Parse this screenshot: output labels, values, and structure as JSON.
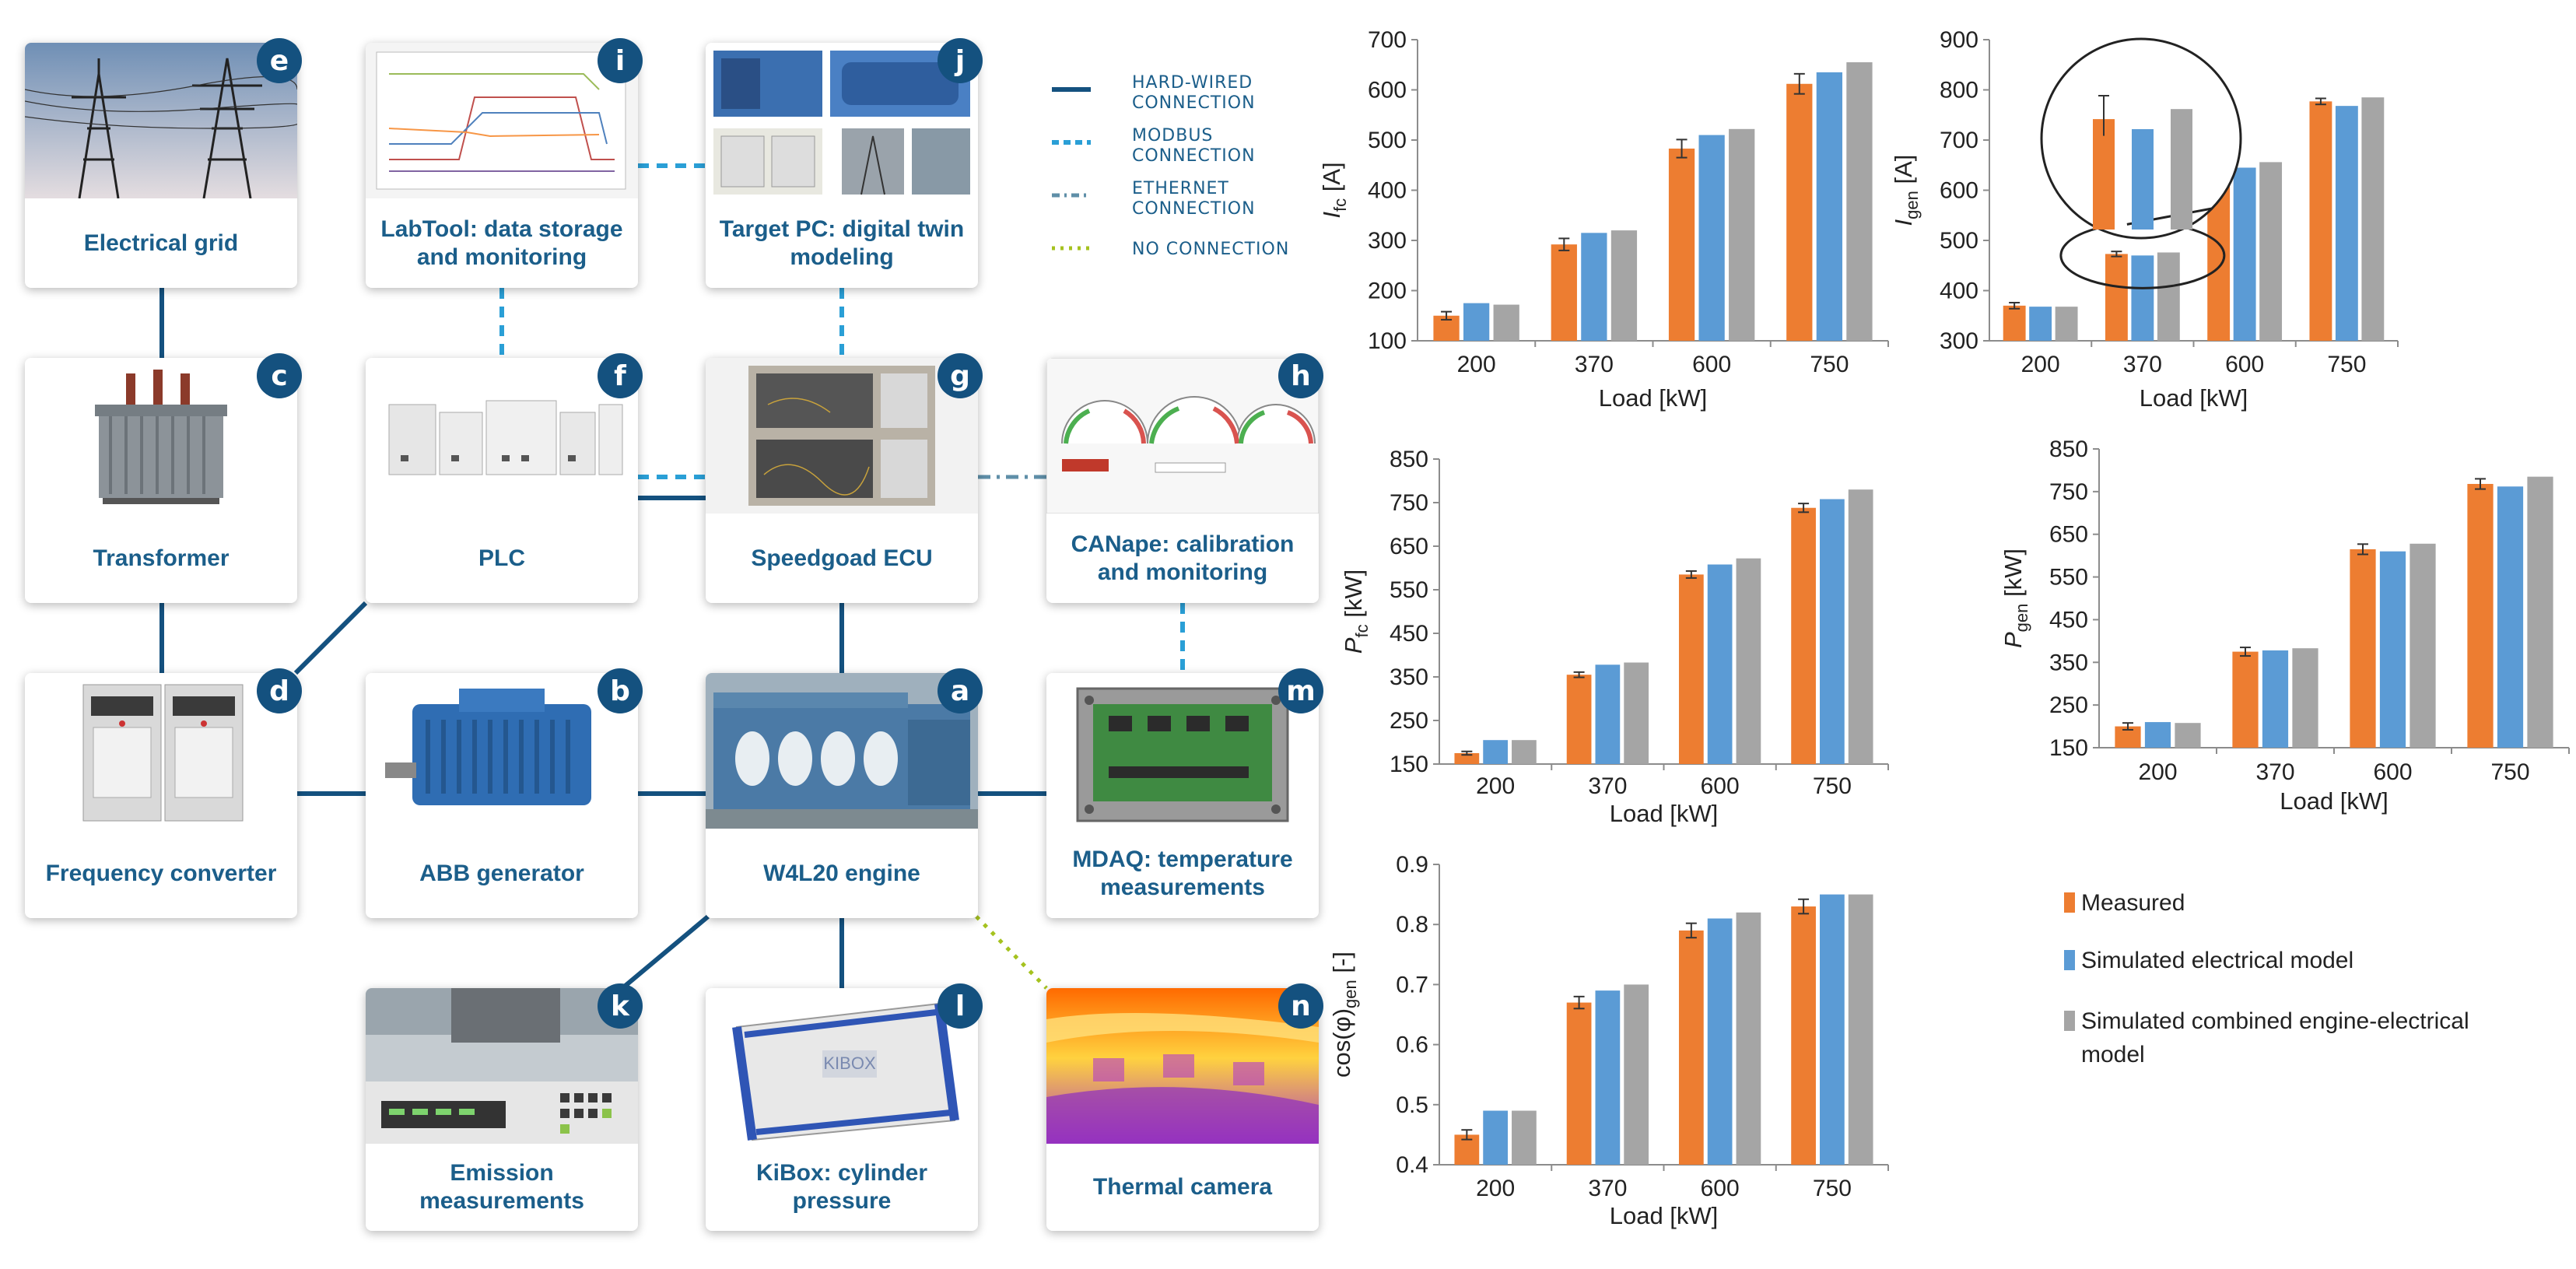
{
  "cards": [
    {
      "id": "e",
      "label": "Electrical grid",
      "photo": "power-lines"
    },
    {
      "id": "i",
      "label": "LabTool: data storage and monitoring",
      "photo": "monitor-plot"
    },
    {
      "id": "j",
      "label": "Target PC: digital twin modeling",
      "photo": "pc-montage"
    },
    {
      "id": "c",
      "label": "Transformer",
      "photo": "transformer"
    },
    {
      "id": "f",
      "label": "PLC",
      "photo": "plc"
    },
    {
      "id": "g",
      "label": "Speedgoad ECU",
      "photo": "ecu-rack"
    },
    {
      "id": "h",
      "label": "CANape: calibration and monitoring",
      "photo": "gauges"
    },
    {
      "id": "d",
      "label": "Frequency converter",
      "photo": "converter-cabinet"
    },
    {
      "id": "b",
      "label": "ABB generator",
      "photo": "generator"
    },
    {
      "id": "a",
      "label": "W4L20 engine",
      "photo": "engine"
    },
    {
      "id": "m",
      "label": "MDAQ: temperature measurements",
      "photo": "daq-box"
    },
    {
      "id": "k",
      "label": "Emission measurements",
      "photo": "analyzer"
    },
    {
      "id": "l",
      "label": "KiBox: cylinder pressure",
      "photo": "kibox"
    },
    {
      "id": "n",
      "label": "Thermal camera",
      "photo": "thermal"
    }
  ],
  "legend": [
    {
      "type": "hard",
      "line1": "HARD-WIRED",
      "line2": "CONNECTION"
    },
    {
      "type": "modbus",
      "line1": "MODBUS",
      "line2": "CONNECTION"
    },
    {
      "type": "ethernet",
      "line1": "ETHERNET",
      "line2": "CONNECTION"
    },
    {
      "type": "none",
      "line1": "NO CONNECTION",
      "line2": ""
    }
  ],
  "colors": {
    "hard": "#14517f",
    "modbus": "#2a9fd6",
    "ethernet": "#5f8fa8",
    "none": "#a5c21f",
    "measured": "#ed7d31",
    "sim_elec": "#5b9bd5",
    "sim_comb": "#a5a5a5"
  },
  "chart_legend": {
    "measured": "Measured",
    "sim_elec": "Simulated electrical model",
    "sim_comb_line1": "Simulated combined engine-electrical",
    "sim_comb_line2": "model"
  },
  "chart_data": [
    {
      "type": "bar",
      "ylabel_main": "I",
      "ylabel_sub": "fc",
      "ylabel_unit": " [A]",
      "xlabel": "Load [kW]",
      "categories": [
        "200",
        "370",
        "600",
        "750"
      ],
      "ylim": [
        100,
        700
      ],
      "yticks": [
        100,
        200,
        300,
        400,
        500,
        600,
        700
      ],
      "series": [
        {
          "name": "Measured",
          "values": [
            150,
            292,
            483,
            612
          ],
          "err": [
            8,
            12,
            18,
            20
          ]
        },
        {
          "name": "Simulated electrical model",
          "values": [
            175,
            315,
            510,
            635
          ]
        },
        {
          "name": "Simulated combined engine-electrical model",
          "values": [
            172,
            320,
            522,
            655
          ]
        }
      ]
    },
    {
      "type": "bar",
      "ylabel_main": "I",
      "ylabel_sub": "gen",
      "ylabel_unit": " [A]",
      "xlabel": "Load [kW]",
      "categories": [
        "200",
        "370",
        "600",
        "750"
      ],
      "ylim": [
        300,
        900
      ],
      "yticks": [
        300,
        400,
        500,
        600,
        700,
        800,
        900
      ],
      "series": [
        {
          "name": "Measured",
          "values": [
            370,
            473,
            652,
            777
          ],
          "err": [
            6,
            5,
            6,
            6
          ]
        },
        {
          "name": "Simulated electrical model",
          "values": [
            368,
            470,
            645,
            768
          ]
        },
        {
          "name": "Simulated combined engine-electrical model",
          "values": [
            368,
            476,
            656,
            785
          ]
        }
      ],
      "inset": {
        "values": [
          473,
          470,
          476
        ]
      }
    },
    {
      "type": "bar",
      "ylabel_main": "P",
      "ylabel_sub": "fc",
      "ylabel_unit": " [kW]",
      "xlabel": "Load [kW]",
      "categories": [
        "200",
        "370",
        "600",
        "750"
      ],
      "ylim": [
        150,
        850
      ],
      "yticks": [
        150,
        250,
        350,
        450,
        550,
        650,
        750,
        850
      ],
      "series": [
        {
          "name": "Measured",
          "values": [
            175,
            355,
            585,
            738
          ],
          "err": [
            4,
            6,
            8,
            10
          ]
        },
        {
          "name": "Simulated electrical model",
          "values": [
            205,
            378,
            608,
            758
          ]
        },
        {
          "name": "Simulated combined engine-electrical model",
          "values": [
            205,
            383,
            622,
            780
          ]
        }
      ]
    },
    {
      "type": "bar",
      "ylabel_main": "P",
      "ylabel_sub": "gen",
      "ylabel_unit": " [kW]",
      "xlabel": "Load [kW]",
      "categories": [
        "200",
        "370",
        "600",
        "750"
      ],
      "ylim": [
        150,
        850
      ],
      "yticks": [
        150,
        250,
        350,
        450,
        550,
        650,
        750,
        850
      ],
      "series": [
        {
          "name": "Measured",
          "values": [
            200,
            375,
            615,
            768
          ],
          "err": [
            8,
            10,
            12,
            12
          ]
        },
        {
          "name": "Simulated electrical model",
          "values": [
            210,
            378,
            610,
            762
          ]
        },
        {
          "name": "Simulated combined engine-electrical model",
          "values": [
            208,
            383,
            628,
            785
          ]
        }
      ]
    },
    {
      "type": "bar",
      "ylabel_main": "cos(φ)",
      "ylabel_sub": "gen",
      "ylabel_unit": " [-]",
      "xlabel": "Load [kW]",
      "categories": [
        "200",
        "370",
        "600",
        "750"
      ],
      "ylim": [
        0.4,
        0.9
      ],
      "yticks": [
        0.4,
        0.5,
        0.6,
        0.7,
        0.8,
        0.9
      ],
      "series": [
        {
          "name": "Measured",
          "values": [
            0.45,
            0.67,
            0.79,
            0.83
          ],
          "err": [
            0.008,
            0.01,
            0.012,
            0.012
          ]
        },
        {
          "name": "Simulated electrical model",
          "values": [
            0.49,
            0.69,
            0.81,
            0.85
          ]
        },
        {
          "name": "Simulated combined engine-electrical model",
          "values": [
            0.49,
            0.7,
            0.82,
            0.85
          ]
        }
      ]
    }
  ]
}
